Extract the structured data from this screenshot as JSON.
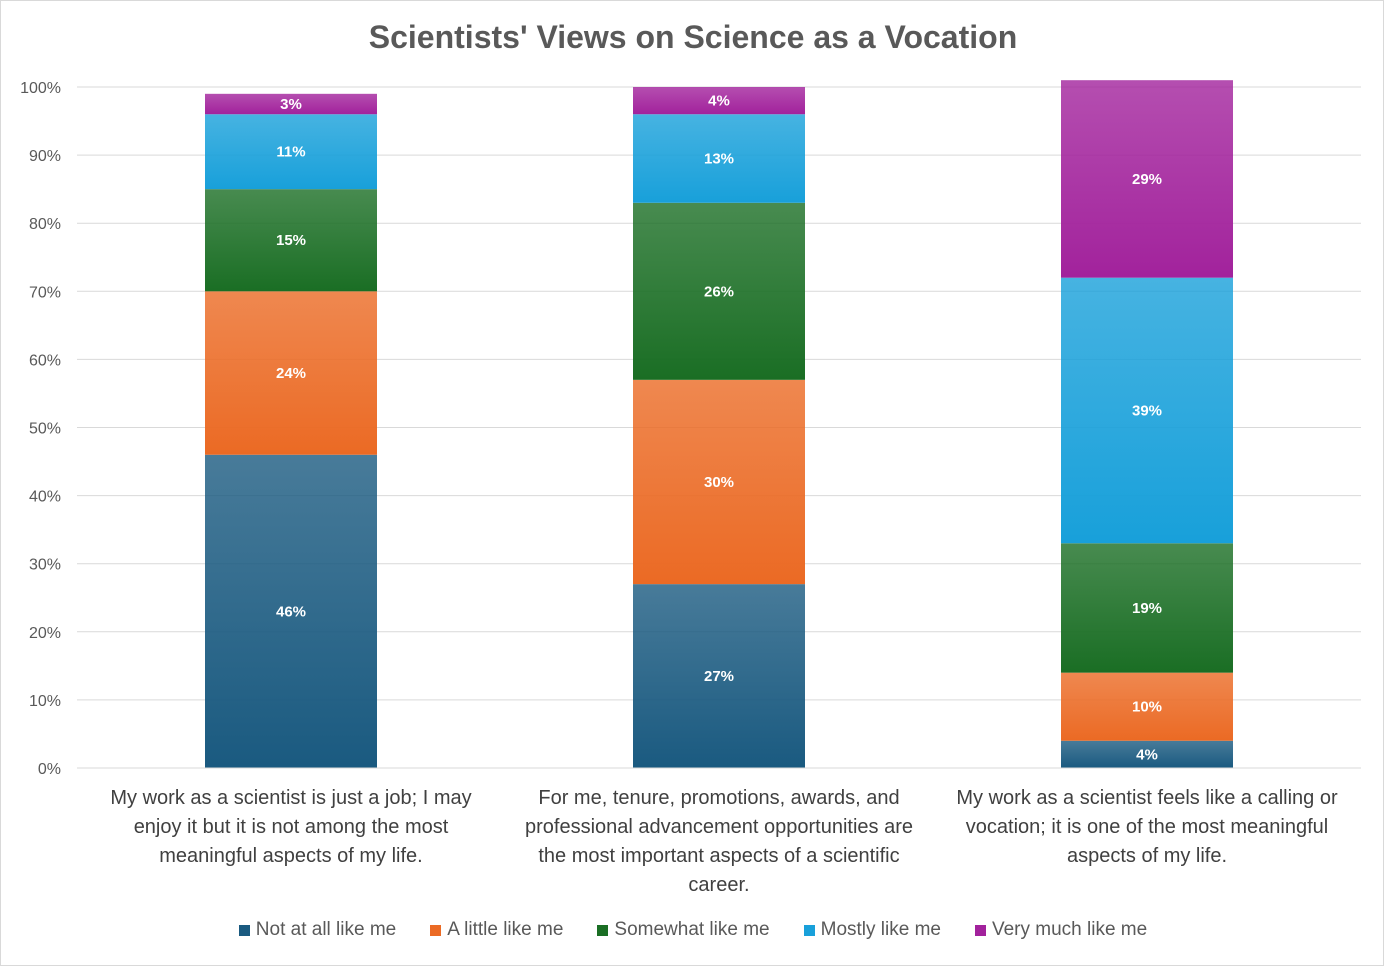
{
  "chart_data": {
    "type": "bar",
    "stacked": true,
    "title": "Scientists' Views on Science as a Vocation",
    "categories": [
      "My work as a scientist is just a job; I may enjoy it but it is not among the most meaningful aspects of my life.",
      "For me, tenure, promotions, awards, and professional advancement opportunities are the most important aspects of a scientific career.",
      "My work as a scientist feels like a calling or vocation; it is one of the most meaningful aspects of my life."
    ],
    "series": [
      {
        "name": "Not at all like me",
        "values": [
          46,
          27,
          4
        ],
        "labels": [
          "46%",
          "27%",
          "4%"
        ],
        "color": "#1a5a80"
      },
      {
        "name": "A little like me",
        "values": [
          24,
          30,
          10
        ],
        "labels": [
          "24%",
          "30%",
          "10%"
        ],
        "color": "#eb6a24"
      },
      {
        "name": "Somewhat like me",
        "values": [
          15,
          26,
          19
        ],
        "labels": [
          "15%",
          "26%",
          "19%"
        ],
        "color": "#1a6e24"
      },
      {
        "name": "Mostly like me",
        "values": [
          11,
          13,
          39
        ],
        "labels": [
          "11%",
          "13%",
          "39%"
        ],
        "color": "#18a0da"
      },
      {
        "name": "Very much like me",
        "values": [
          3,
          4,
          29
        ],
        "labels": [
          "3%",
          "4%",
          "29%"
        ],
        "color": "#a2229c"
      }
    ],
    "yticks": [
      "0%",
      "10%",
      "20%",
      "30%",
      "40%",
      "50%",
      "60%",
      "70%",
      "80%",
      "90%",
      "100%"
    ],
    "ylim": [
      0,
      100
    ],
    "xlabel": "",
    "ylabel": "",
    "grid": true,
    "legend": "bottom"
  }
}
